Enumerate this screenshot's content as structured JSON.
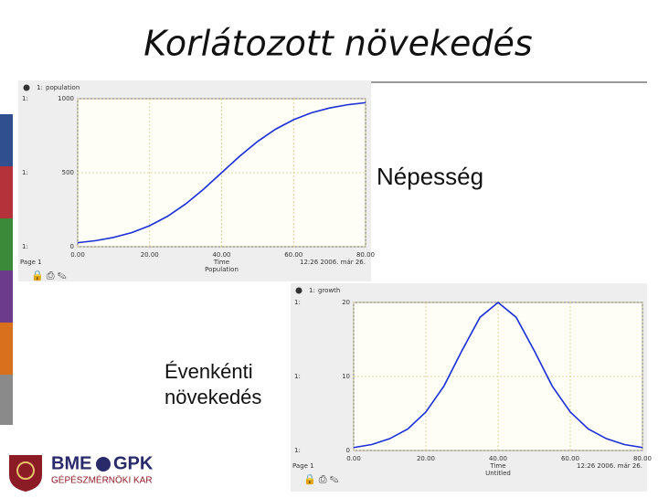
{
  "slide": {
    "title": "Korlátozott növekedés",
    "label_population": "Népesség",
    "label_growth_1": "Évenkénti",
    "label_growth_2": "növekedés",
    "logo_1": "BME",
    "logo_2": "GPK",
    "logo_sub": "GÉPÉSZMÉRNÖKI KAR"
  },
  "chart_data": [
    {
      "type": "line",
      "title": "Population",
      "xlabel": "Time",
      "page": "Page 1",
      "timestamp": "12:26  2006. már 26.",
      "series_key": "1:",
      "x": [
        0,
        5,
        10,
        15,
        20,
        25,
        30,
        35,
        40,
        45,
        50,
        55,
        60,
        65,
        70,
        75,
        80
      ],
      "series": [
        {
          "name": "population",
          "color": "#1a2fd6",
          "values": [
            27,
            41,
            63,
            95,
            142,
            206,
            289,
            389,
            500,
            611,
            711,
            794,
            858,
            905,
            937,
            959,
            973
          ]
        }
      ],
      "xlim": [
        0,
        80
      ],
      "xticks": [
        {
          "value": 0,
          "label": "0.00"
        },
        {
          "value": 20,
          "label": "20.00"
        },
        {
          "value": 40,
          "label": "40.00"
        },
        {
          "value": 60,
          "label": "60.00"
        },
        {
          "value": 80,
          "label": "80.00"
        }
      ],
      "ylim": [
        0,
        1000
      ],
      "yticks": [
        0,
        500,
        1000
      ],
      "grid": true
    },
    {
      "type": "line",
      "title": "Untitled",
      "xlabel": "Time",
      "page": "Page 1",
      "timestamp": "12:26  2006. már 26.",
      "series_key": "1:",
      "x": [
        0,
        5,
        10,
        15,
        20,
        25,
        30,
        35,
        40,
        45,
        50,
        55,
        60,
        65,
        70,
        75,
        80
      ],
      "series": [
        {
          "name": "growth",
          "color": "#1a2fd6",
          "values": [
            0.4,
            0.8,
            1.6,
            2.9,
            5.2,
            8.7,
            13.5,
            18.0,
            20,
            18.0,
            13.5,
            8.7,
            5.2,
            2.9,
            1.6,
            0.8,
            0.4
          ]
        }
      ],
      "xlim": [
        0,
        80
      ],
      "xticks": [
        {
          "value": 0,
          "label": "0.00"
        },
        {
          "value": 20,
          "label": "20.00"
        },
        {
          "value": 40,
          "label": "40.00"
        },
        {
          "value": 60,
          "label": "60.00"
        },
        {
          "value": 80,
          "label": "80.00"
        }
      ],
      "ylim": [
        0,
        20
      ],
      "yticks": [
        0,
        10,
        20
      ],
      "grid": true
    }
  ]
}
